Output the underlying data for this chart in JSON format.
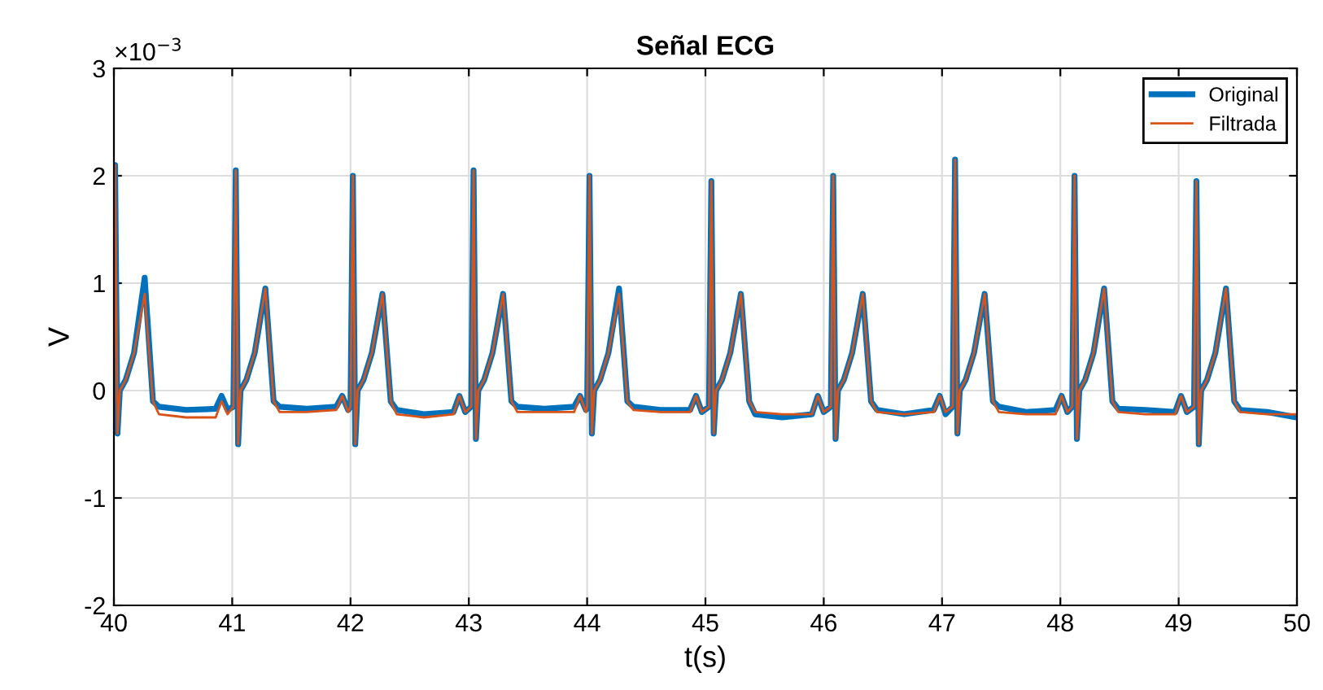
{
  "chart_data": {
    "type": "line",
    "title": "Señal ECG",
    "xlabel": "t(s)",
    "ylabel": "V",
    "annotations": [
      "×10$^{−3}$"
    ],
    "x": [
      40.0,
      40.01,
      40.03,
      40.05,
      40.1,
      40.17,
      40.26,
      40.33,
      40.38,
      40.61,
      40.86,
      40.91,
      40.96,
      41.01,
      41.03,
      41.05,
      41.07,
      41.12,
      41.19,
      41.28,
      41.35,
      41.4,
      41.63,
      41.88,
      41.93,
      41.98,
      42.0,
      42.02,
      42.04,
      42.06,
      42.11,
      42.18,
      42.27,
      42.34,
      42.39,
      42.62,
      42.87,
      42.92,
      42.97,
      43.02,
      43.04,
      43.06,
      43.08,
      43.13,
      43.2,
      43.29,
      43.36,
      43.41,
      43.64,
      43.89,
      43.94,
      43.99,
      44.0,
      44.02,
      44.04,
      44.06,
      44.11,
      44.18,
      44.27,
      44.34,
      44.39,
      44.62,
      44.87,
      44.92,
      44.97,
      45.03,
      45.05,
      45.07,
      45.09,
      45.14,
      45.21,
      45.3,
      45.37,
      45.42,
      45.65,
      45.9,
      45.95,
      46.0,
      46.06,
      46.08,
      46.1,
      46.12,
      46.17,
      46.24,
      46.33,
      46.4,
      46.45,
      46.68,
      46.93,
      46.98,
      47.03,
      47.09,
      47.11,
      47.13,
      47.15,
      47.2,
      47.27,
      47.36,
      47.43,
      47.48,
      47.71,
      47.96,
      48.01,
      48.06,
      48.1,
      48.12,
      48.14,
      48.16,
      48.21,
      48.28,
      48.37,
      48.44,
      48.49,
      48.72,
      48.97,
      49.02,
      49.07,
      49.13,
      49.15,
      49.17,
      49.19,
      49.24,
      49.31,
      49.4,
      49.47,
      49.52,
      49.75,
      50.0
    ],
    "series": [
      {
        "name": "Original",
        "color": "#0072bd",
        "values": [
          -0.1,
          2.1,
          -0.4,
          0,
          0.1,
          0.35,
          1.05,
          -0.1,
          -0.15,
          -0.18,
          -0.17,
          -0.05,
          -0.18,
          -0.15,
          2.05,
          -0.5,
          0,
          0.1,
          0.35,
          0.95,
          -0.1,
          -0.15,
          -0.17,
          -0.15,
          -0.05,
          -0.18,
          -0.15,
          2.0,
          -0.5,
          0,
          0.1,
          0.35,
          0.9,
          -0.1,
          -0.18,
          -0.22,
          -0.2,
          -0.05,
          -0.2,
          -0.15,
          2.05,
          -0.45,
          0,
          0.1,
          0.35,
          0.9,
          -0.1,
          -0.15,
          -0.17,
          -0.15,
          -0.05,
          -0.18,
          -0.15,
          2.0,
          -0.4,
          0,
          0.1,
          0.35,
          0.95,
          -0.1,
          -0.15,
          -0.18,
          -0.18,
          -0.05,
          -0.2,
          -0.15,
          1.95,
          -0.4,
          0,
          0.1,
          0.35,
          0.9,
          -0.1,
          -0.22,
          -0.25,
          -0.22,
          -0.05,
          -0.2,
          -0.15,
          2.0,
          -0.45,
          0,
          0.1,
          0.35,
          0.9,
          -0.1,
          -0.18,
          -0.22,
          -0.18,
          -0.05,
          -0.22,
          -0.15,
          2.15,
          -0.4,
          0,
          0.1,
          0.35,
          0.9,
          -0.1,
          -0.15,
          -0.2,
          -0.18,
          -0.05,
          -0.2,
          -0.15,
          2.0,
          -0.45,
          0,
          0.1,
          0.35,
          0.95,
          -0.1,
          -0.17,
          -0.18,
          -0.2,
          -0.05,
          -0.2,
          -0.15,
          1.95,
          -0.5,
          0,
          0.1,
          0.35,
          0.95,
          -0.1,
          -0.18,
          -0.2,
          -0.25
        ]
      },
      {
        "name": "Filtrada",
        "color": "#d95319",
        "values": [
          -0.1,
          2.1,
          -0.4,
          0,
          0.1,
          0.35,
          0.9,
          -0.1,
          -0.22,
          -0.25,
          -0.25,
          -0.1,
          -0.22,
          -0.15,
          2.05,
          -0.5,
          0,
          0.1,
          0.35,
          0.95,
          -0.1,
          -0.2,
          -0.2,
          -0.18,
          -0.05,
          -0.2,
          -0.15,
          2.0,
          -0.5,
          0,
          0.1,
          0.35,
          0.9,
          -0.1,
          -0.22,
          -0.25,
          -0.22,
          -0.05,
          -0.2,
          -0.15,
          2.05,
          -0.45,
          0,
          0.1,
          0.35,
          0.9,
          -0.1,
          -0.2,
          -0.2,
          -0.2,
          -0.05,
          -0.2,
          -0.15,
          2.0,
          -0.4,
          0,
          0.1,
          0.35,
          0.9,
          -0.1,
          -0.18,
          -0.2,
          -0.2,
          -0.05,
          -0.2,
          -0.15,
          1.95,
          -0.4,
          0,
          0.1,
          0.35,
          0.9,
          -0.1,
          -0.2,
          -0.22,
          -0.22,
          -0.05,
          -0.2,
          -0.15,
          2.0,
          -0.45,
          0,
          0.1,
          0.35,
          0.9,
          -0.1,
          -0.2,
          -0.22,
          -0.2,
          -0.05,
          -0.2,
          -0.15,
          2.15,
          -0.4,
          0,
          0.1,
          0.35,
          0.9,
          -0.1,
          -0.2,
          -0.22,
          -0.22,
          -0.05,
          -0.2,
          -0.15,
          2.0,
          -0.45,
          0,
          0.1,
          0.35,
          0.95,
          -0.1,
          -0.2,
          -0.22,
          -0.22,
          -0.05,
          -0.2,
          -0.15,
          1.95,
          -0.5,
          0,
          0.1,
          0.35,
          0.95,
          -0.1,
          -0.2,
          -0.22,
          -0.22
        ]
      }
    ],
    "xlim": [
      40,
      50
    ],
    "xticks": [
      40,
      41,
      42,
      43,
      44,
      45,
      46,
      47,
      48,
      49,
      50
    ],
    "ylim": [
      -2,
      3
    ],
    "yticks": [
      -2,
      -1,
      0,
      1,
      2,
      3
    ],
    "grid": true,
    "legend": "top right",
    "line_style": "solid",
    "marker": "none"
  }
}
